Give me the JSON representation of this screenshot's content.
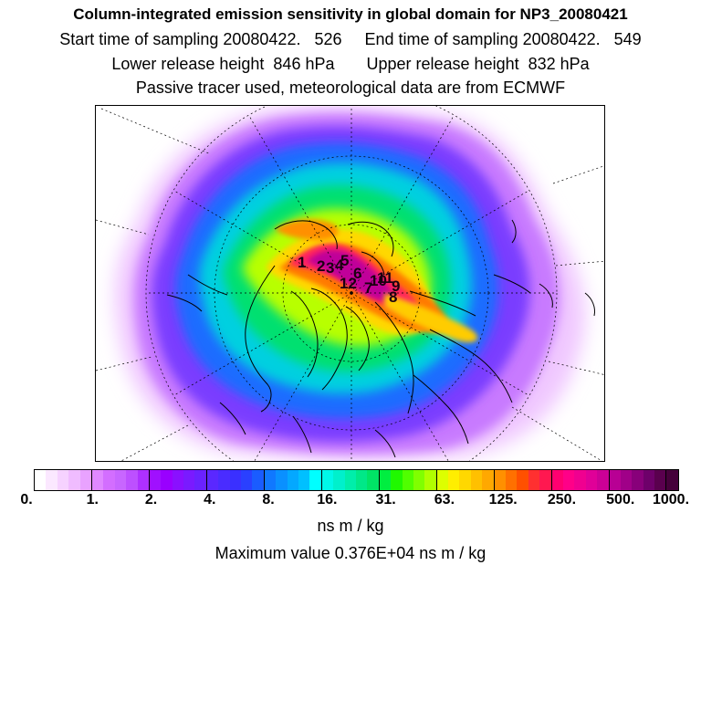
{
  "header": {
    "title": "Column-integrated emission sensitivity in global domain for NP3_20080421",
    "sampling_line": "Start time of sampling 20080422.   526     End time of sampling 20080422.   549",
    "release_line": "Lower release height  846 hPa       Upper release height  832 hPa",
    "tracer_line": "Passive tracer used, meteorological data are from ECMWF"
  },
  "map": {
    "projection": "north polar stereographic",
    "point_labels": [
      "1",
      "2",
      "3",
      "4",
      "5",
      "6",
      "7",
      "8",
      "9",
      "10",
      "11",
      "12"
    ]
  },
  "colorbar": {
    "tick_labels": [
      "0.",
      "1.",
      "2.",
      "4.",
      "8.",
      "16.",
      "31.",
      "63.",
      "125.",
      "250.",
      "500.",
      "1000."
    ],
    "colors": [
      "#ffffff",
      "#fbe8ff",
      "#f6d2ff",
      "#f0bcff",
      "#e9a2ff",
      "#e088ff",
      "#d36eff",
      "#c866ff",
      "#bd50ff",
      "#ae30ff",
      "#a010ff",
      "#9900ff",
      "#8a10ff",
      "#7a1aff",
      "#6a22ff",
      "#5a28ff",
      "#4a2cff",
      "#3a30ff",
      "#2a40ff",
      "#1a5cff",
      "#1078ff",
      "#0a90ff",
      "#04a8ff",
      "#00c0ff",
      "#00ffff",
      "#00f8e8",
      "#00f0cc",
      "#00eeaa",
      "#00e888",
      "#00e466",
      "#00ee40",
      "#20f800",
      "#50ff00",
      "#80ff00",
      "#b0ff00",
      "#ddff00",
      "#ffee00",
      "#ffd800",
      "#ffc000",
      "#ffa800",
      "#ff9000",
      "#ff7000",
      "#ff5000",
      "#ff3030",
      "#ff1850",
      "#ff0070",
      "#ff0088",
      "#f00090",
      "#e00098",
      "#cc0096",
      "#b80094",
      "#a00088",
      "#88007a",
      "#6e006a",
      "#5a004e",
      "#45003a"
    ],
    "unit": "ns m / kg"
  },
  "max_value_text": "Maximum value  0.376E+04 ns m / kg"
}
